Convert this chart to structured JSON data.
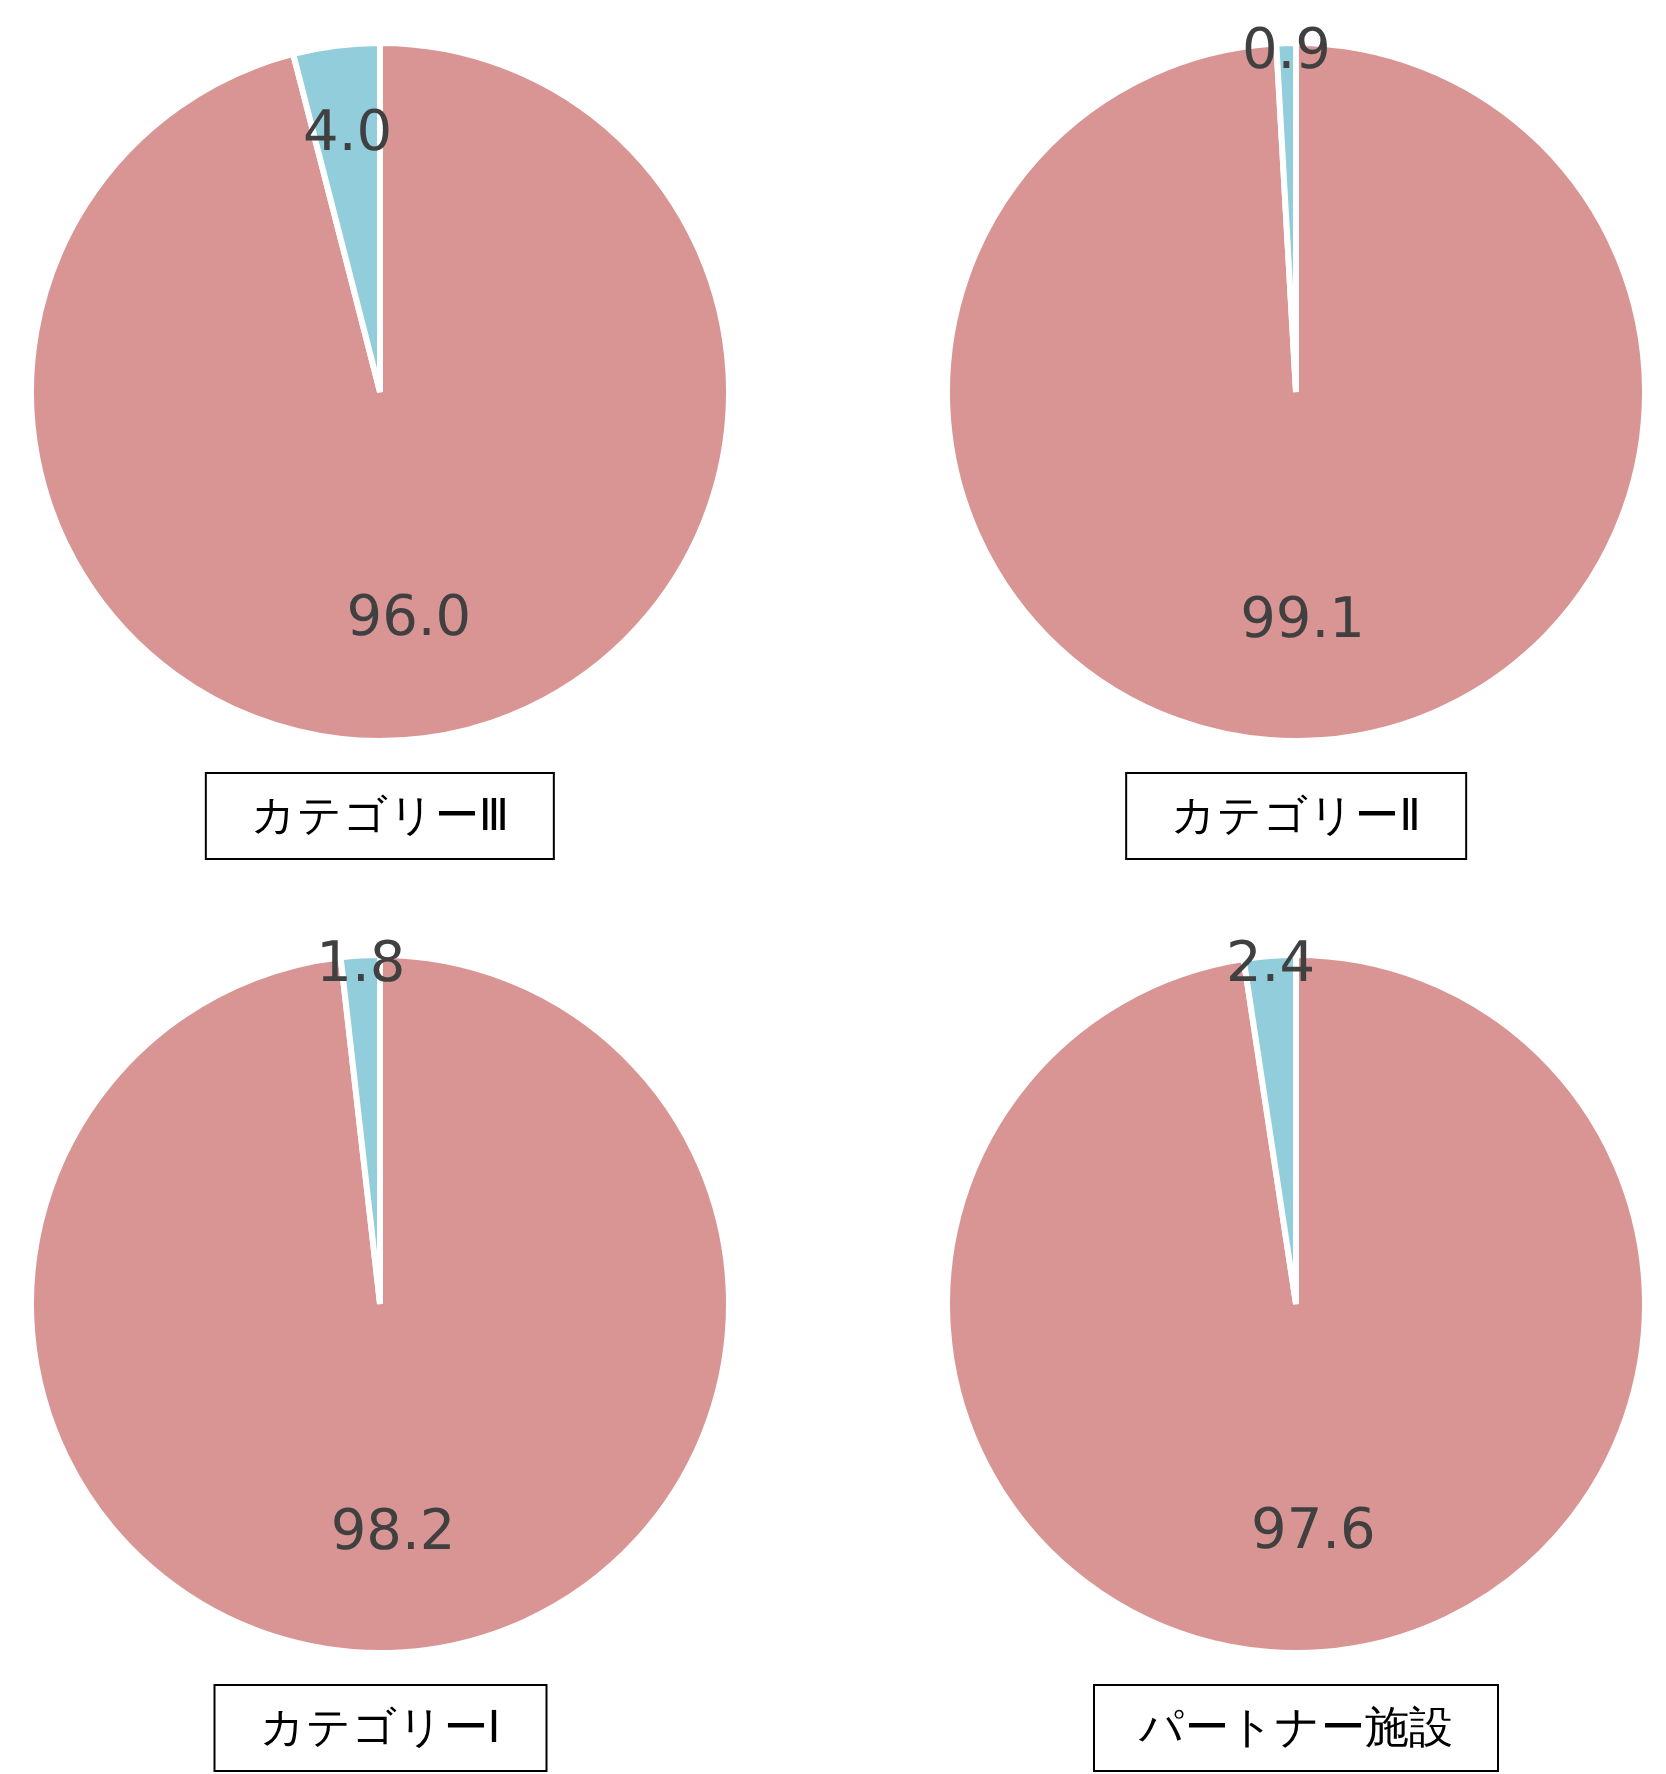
{
  "chart_data": [
    {
      "type": "pie",
      "title": "カテゴリーⅢ",
      "categories": [
        null,
        null
      ],
      "values": [
        96.0,
        4.0
      ],
      "value_labels": [
        "96.0",
        "4.0"
      ],
      "colors": [
        "#d99594",
        "#92cddc"
      ]
    },
    {
      "type": "pie",
      "title": "カテゴリーⅡ",
      "categories": [
        null,
        null
      ],
      "values": [
        99.1,
        0.9
      ],
      "value_labels": [
        "99.1",
        "0.9"
      ],
      "colors": [
        "#d99594",
        "#92cddc"
      ]
    },
    {
      "type": "pie",
      "title": "カテゴリーⅠ",
      "categories": [
        null,
        null
      ],
      "values": [
        98.2,
        1.8
      ],
      "value_labels": [
        "98.2",
        "1.8"
      ],
      "colors": [
        "#d99594",
        "#92cddc"
      ]
    },
    {
      "type": "pie",
      "title": "パートナー施設",
      "categories": [
        null,
        null
      ],
      "values": [
        97.6,
        2.4
      ],
      "value_labels": [
        "97.6",
        "2.4"
      ],
      "colors": [
        "#d99594",
        "#92cddc"
      ]
    }
  ]
}
